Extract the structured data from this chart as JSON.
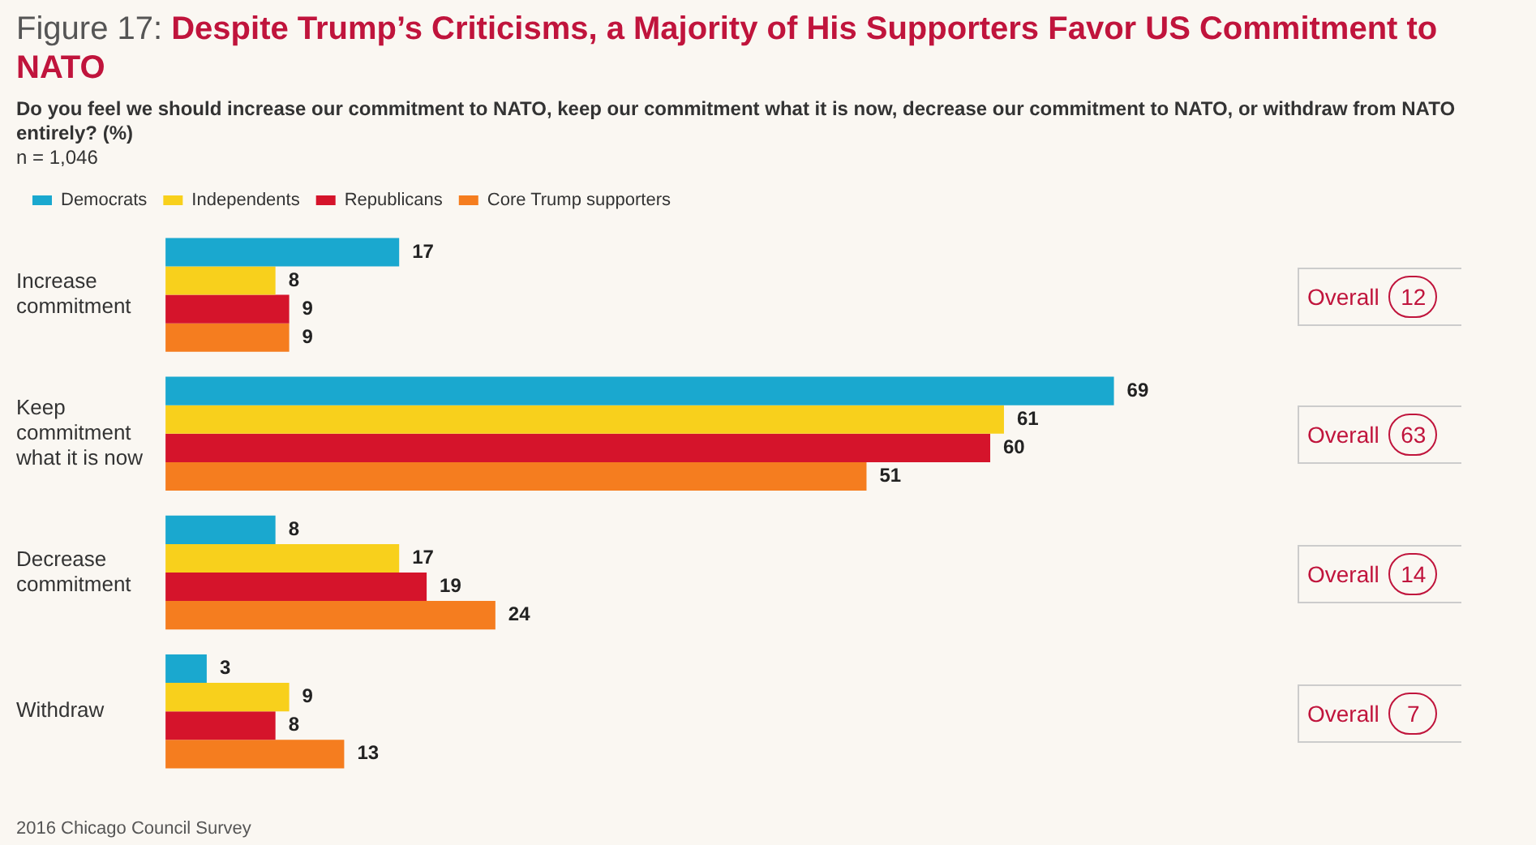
{
  "chart_data": {
    "type": "bar",
    "orientation": "horizontal",
    "title": "Figure 17: Despite Trump’s Criticisms, a Majority of His Supporters Favor US Commitment to NATO",
    "subtitle": "Do you feel we should increase our commitment to NATO, keep our commitment what it is now, decrease our commitment to NATO, or withdraw from NATO entirely? (%)\nn = 1,046",
    "categories": [
      "Increase commitment",
      "Keep commitment what it is now",
      "Decrease commitment",
      "Withdraw"
    ],
    "series": [
      {
        "name": "Democrats",
        "color": "#1aa8cf",
        "values": [
          17,
          69,
          8,
          3
        ]
      },
      {
        "name": "Independents",
        "color": "#f8d01c",
        "values": [
          8,
          61,
          17,
          9
        ]
      },
      {
        "name": "Republicans",
        "color": "#d5142b",
        "values": [
          9,
          60,
          19,
          8
        ]
      },
      {
        "name": "Core Trump supporters",
        "color": "#f57d1f",
        "values": [
          9,
          51,
          24,
          13
        ]
      }
    ],
    "data_labels": true,
    "legend": "top left",
    "annotations": [
      "Overall 12",
      "Overall 63",
      "Overall 14",
      "Overall 7",
      "2016 Chicago Council Survey"
    ]
  }
}
